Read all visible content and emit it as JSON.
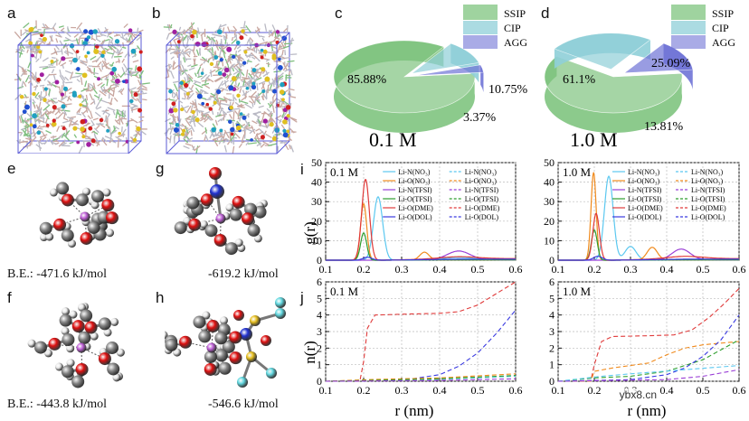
{
  "panels": {
    "a": "a",
    "b": "b",
    "c": "c",
    "d": "d",
    "e": "e",
    "f": "f",
    "g": "g",
    "h": "h",
    "i": "i",
    "j": "j"
  },
  "binding_energies": {
    "e": "B.E.:  -471.6 kJ/mol",
    "g": "-619.2 kJ/mol",
    "f": "B.E.:  -443.8 kJ/mol",
    "h": "-546.6 kJ/mol"
  },
  "colors": {
    "ssip": "#7fc47f",
    "cip": "#8fcfd8",
    "agg": "#6f73d6",
    "agg_dark": "#3b49b8",
    "box": "#5b5bd6",
    "li_n_no3": "#5bc8f0",
    "li_o_no3": "#f08a1c",
    "li_n_tfsi": "#9a3fd6",
    "li_o_tfsi": "#2e9e2e",
    "li_o_dme": "#e03a3a",
    "li_o_dol": "#3a3ae0"
  },
  "chart_data": [
    {
      "type": "pie",
      "panel": "c",
      "title": "0.1 M",
      "labels": [
        "SSIP",
        "CIP",
        "AGG"
      ],
      "values": [
        85.88,
        10.75,
        3.37
      ],
      "value_labels": [
        "85.88%",
        "10.75%",
        "3.37%"
      ]
    },
    {
      "type": "pie",
      "panel": "d",
      "title": "1.0 M",
      "labels": [
        "SSIP",
        "CIP",
        "AGG"
      ],
      "values": [
        61.1,
        25.09,
        13.81
      ],
      "value_labels": [
        "61.1%",
        "25.09%",
        "13.81%"
      ]
    },
    {
      "type": "line",
      "panel": "i-left",
      "title": "0.1 M",
      "ylabel": "g(r)",
      "xlabel": "",
      "xlim": [
        0.1,
        0.6
      ],
      "ylim": [
        0,
        50
      ],
      "xticks": [
        "0.1",
        "0.2",
        "0.3",
        "0.4",
        "0.5",
        "0.6"
      ],
      "yticks": [
        "0",
        "10",
        "20",
        "30",
        "40",
        "50"
      ],
      "legend_left": [
        "Li-N(NO₃)",
        "Li-O(NO₃)",
        "Li-N(TFSI)",
        "Li-O(TFSI)",
        "Li-O(DME)",
        "Li-O(DOL)"
      ],
      "legend_right": [
        "Li-N(NO₃)",
        "Li-O(NO₃)",
        "Li-N(TFSI)",
        "Li-O(TFSI)",
        "Li-O(DME)",
        "Li-O(DOL)"
      ],
      "series": [
        {
          "name": "Li-N(NO3)",
          "peaks": [
            [
              0.238,
              32.5,
              0.012
            ],
            [
              0.45,
              1.2,
              0.04
            ]
          ]
        },
        {
          "name": "Li-O(NO3)",
          "peaks": [
            [
              0.2,
              29,
              0.008
            ],
            [
              0.36,
              4,
              0.012
            ]
          ]
        },
        {
          "name": "Li-N(TFSI)",
          "peaks": [
            [
              0.45,
              4.5,
              0.03
            ]
          ]
        },
        {
          "name": "Li-O(TFSI)",
          "peaks": [
            [
              0.2,
              14,
              0.008
            ]
          ]
        },
        {
          "name": "Li-O(DME)",
          "peaks": [
            [
              0.205,
              41.5,
              0.01
            ],
            [
              0.45,
              1.0,
              0.05
            ]
          ]
        },
        {
          "name": "Li-O(DOL)",
          "peaks": [
            [
              0.21,
              1.5,
              0.012
            ]
          ]
        }
      ]
    },
    {
      "type": "line",
      "panel": "i-right",
      "title": "1.0 M",
      "xlim": [
        0.1,
        0.6
      ],
      "ylim": [
        0,
        50
      ],
      "xticks": [
        "0.1",
        "0.2",
        "0.3",
        "0.4",
        "0.5",
        "0.6"
      ],
      "yticks": [
        "0",
        "10",
        "20",
        "30",
        "40",
        "50"
      ],
      "legend_left": [
        "Li-N(NO₃)",
        "Li-O(NO₃)",
        "Li-N(TFSI)",
        "Li-O(TFSI)",
        "Li-O(DME)",
        "Li-O(DOL)"
      ],
      "legend_right": [
        "Li-N(NO₃)",
        "Li-O(NO₃)",
        "Li-N(TFSI)",
        "Li-O(TFSI)",
        "Li-O(DME)",
        "Li-O(DOL)"
      ],
      "series": [
        {
          "name": "Li-N(NO3)",
          "peaks": [
            [
              0.24,
              43,
              0.012
            ],
            [
              0.3,
              7,
              0.015
            ]
          ]
        },
        {
          "name": "Li-O(NO3)",
          "peaks": [
            [
              0.198,
              45,
              0.007
            ],
            [
              0.36,
              6.5,
              0.014
            ]
          ]
        },
        {
          "name": "Li-N(TFSI)",
          "peaks": [
            [
              0.44,
              5.5,
              0.025
            ]
          ]
        },
        {
          "name": "Li-O(TFSI)",
          "peaks": [
            [
              0.2,
              15.5,
              0.008
            ]
          ]
        },
        {
          "name": "Li-O(DME)",
          "peaks": [
            [
              0.205,
              24,
              0.009
            ],
            [
              0.45,
              1.2,
              0.05
            ]
          ]
        },
        {
          "name": "Li-O(DOL)",
          "peaks": [
            [
              0.21,
              2.0,
              0.012
            ]
          ]
        }
      ]
    },
    {
      "type": "line",
      "panel": "j-left",
      "title": "0.1 M",
      "ylabel": "n(r)",
      "xlabel": "r (nm)",
      "xlim": [
        0.1,
        0.6
      ],
      "ylim": [
        0,
        6
      ],
      "xticks": [
        "0.1",
        "0.2",
        "0.3",
        "0.4",
        "0.5",
        "0.6"
      ],
      "yticks": [
        "0",
        "1",
        "2",
        "3",
        "4",
        "5",
        "6"
      ],
      "series": [
        {
          "name": "Li-O(DME)",
          "points": [
            [
              0.1,
              0
            ],
            [
              0.19,
              0
            ],
            [
              0.2,
              1.2
            ],
            [
              0.21,
              3.2
            ],
            [
              0.23,
              4.0
            ],
            [
              0.3,
              4.05
            ],
            [
              0.4,
              4.1
            ],
            [
              0.45,
              4.2
            ],
            [
              0.5,
              4.6
            ],
            [
              0.55,
              5.3
            ],
            [
              0.6,
              6.0
            ]
          ]
        },
        {
          "name": "Li-O(DOL)",
          "points": [
            [
              0.1,
              0
            ],
            [
              0.3,
              0.05
            ],
            [
              0.4,
              0.4
            ],
            [
              0.45,
              0.9
            ],
            [
              0.5,
              1.7
            ],
            [
              0.55,
              2.9
            ],
            [
              0.6,
              4.3
            ]
          ]
        },
        {
          "name": "Li-N(NO3)",
          "points": [
            [
              0.1,
              0
            ],
            [
              0.25,
              0.08
            ],
            [
              0.4,
              0.12
            ],
            [
              0.6,
              0.3
            ]
          ]
        },
        {
          "name": "Li-O(NO3)",
          "points": [
            [
              0.1,
              0
            ],
            [
              0.21,
              0.1
            ],
            [
              0.4,
              0.2
            ],
            [
              0.6,
              0.45
            ]
          ]
        },
        {
          "name": "Li-O(TFSI)",
          "points": [
            [
              0.1,
              0
            ],
            [
              0.21,
              0.05
            ],
            [
              0.4,
              0.15
            ],
            [
              0.6,
              0.35
            ]
          ]
        },
        {
          "name": "Li-N(TFSI)",
          "points": [
            [
              0.1,
              0
            ],
            [
              0.4,
              0.05
            ],
            [
              0.6,
              0.15
            ]
          ]
        }
      ]
    },
    {
      "type": "line",
      "panel": "j-right",
      "title": "1.0 M",
      "xlabel": "r (nm)",
      "xlim": [
        0.1,
        0.6
      ],
      "ylim": [
        0,
        6
      ],
      "xticks": [
        "0.1",
        "0.2",
        "0.3",
        "0.4",
        "0.5",
        "0.6"
      ],
      "yticks": [
        "0",
        "1",
        "2",
        "3",
        "4",
        "5",
        "6"
      ],
      "series": [
        {
          "name": "Li-O(DME)",
          "points": [
            [
              0.1,
              0
            ],
            [
              0.19,
              0
            ],
            [
              0.2,
              1.0
            ],
            [
              0.22,
              2.4
            ],
            [
              0.25,
              2.7
            ],
            [
              0.35,
              2.75
            ],
            [
              0.42,
              2.8
            ],
            [
              0.47,
              3.1
            ],
            [
              0.52,
              3.9
            ],
            [
              0.56,
              4.7
            ],
            [
              0.6,
              5.6
            ]
          ]
        },
        {
          "name": "Li-O(NO3)",
          "points": [
            [
              0.1,
              0
            ],
            [
              0.19,
              0
            ],
            [
              0.2,
              0.6
            ],
            [
              0.25,
              0.8
            ],
            [
              0.35,
              1.1
            ],
            [
              0.4,
              1.6
            ],
            [
              0.45,
              2.0
            ],
            [
              0.5,
              2.2
            ],
            [
              0.55,
              2.3
            ],
            [
              0.6,
              2.4
            ]
          ]
        },
        {
          "name": "Li-O(TFSI)",
          "points": [
            [
              0.1,
              0
            ],
            [
              0.2,
              0.2
            ],
            [
              0.3,
              0.3
            ],
            [
              0.4,
              0.6
            ],
            [
              0.5,
              1.3
            ],
            [
              0.6,
              2.5
            ]
          ]
        },
        {
          "name": "Li-O(DOL)",
          "points": [
            [
              0.1,
              0
            ],
            [
              0.3,
              0.1
            ],
            [
              0.4,
              0.4
            ],
            [
              0.45,
              0.8
            ],
            [
              0.5,
              1.5
            ],
            [
              0.55,
              2.5
            ],
            [
              0.6,
              4.0
            ]
          ]
        },
        {
          "name": "Li-N(NO3)",
          "points": [
            [
              0.1,
              0
            ],
            [
              0.22,
              0.3
            ],
            [
              0.3,
              0.45
            ],
            [
              0.45,
              0.7
            ],
            [
              0.6,
              0.95
            ]
          ]
        },
        {
          "name": "Li-N(TFSI)",
          "points": [
            [
              0.1,
              0
            ],
            [
              0.4,
              0.1
            ],
            [
              0.5,
              0.3
            ],
            [
              0.6,
              0.7
            ]
          ]
        }
      ]
    }
  ],
  "watermark": "ybx8.cn"
}
